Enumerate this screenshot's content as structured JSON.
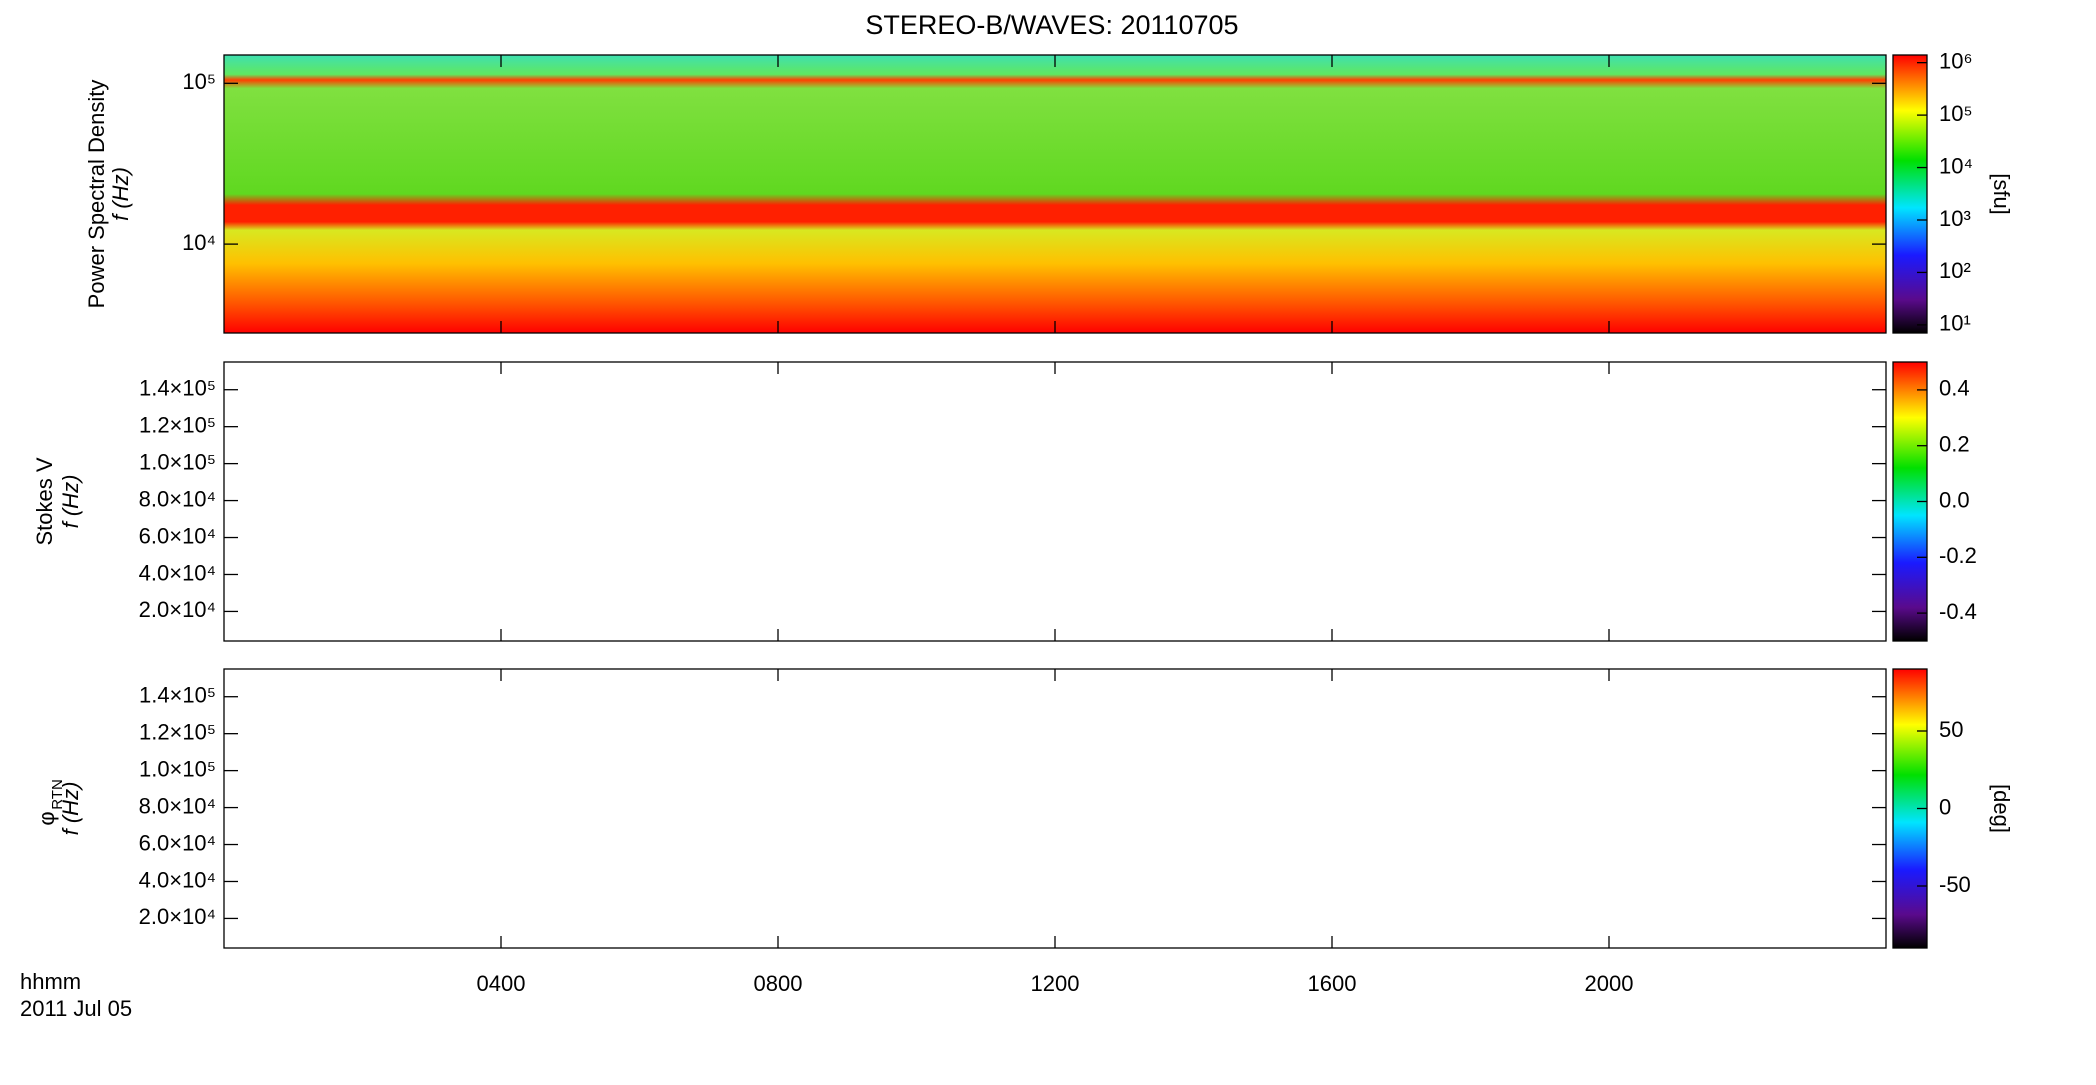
{
  "chart_data": [
    {
      "type": "spectrogram",
      "title": "STEREO-B/WAVES: 20110705",
      "ylabel": "Power Spectral Density",
      "ylabel_unit": "f (Hz)",
      "xlim": [
        0,
        24
      ],
      "xticks": [
        {
          "value": 4,
          "label": "0400"
        },
        {
          "value": 8,
          "label": "0800"
        },
        {
          "value": 12,
          "label": "1200"
        },
        {
          "value": 16,
          "label": "1600"
        },
        {
          "value": 20,
          "label": "2000"
        }
      ],
      "ylog": true,
      "ylim": [
        2800,
        150000
      ],
      "yticks": [
        {
          "value": 10000,
          "label": "10⁴"
        },
        {
          "value": 100000,
          "label": "10⁵"
        }
      ],
      "clog": true,
      "clim": [
        7,
        1400000
      ],
      "cticks": [
        {
          "value": 10,
          "label": "10¹"
        },
        {
          "value": 100,
          "label": "10²"
        },
        {
          "value": 1000,
          "label": "10³"
        },
        {
          "value": 10000,
          "label": "10⁴"
        },
        {
          "value": 100000,
          "label": "10⁵"
        },
        {
          "value": 1000000,
          "label": "10⁶"
        }
      ],
      "clabel": "[sfu]"
    },
    {
      "type": "spectrogram",
      "ylabel": "Stokes V",
      "ylabel_unit": "f (Hz)",
      "xlim": [
        0,
        24
      ],
      "xticks": [
        {
          "value": 4,
          "label": "0400"
        },
        {
          "value": 8,
          "label": "0800"
        },
        {
          "value": 12,
          "label": "1200"
        },
        {
          "value": 16,
          "label": "1600"
        },
        {
          "value": 20,
          "label": "2000"
        }
      ],
      "ylog": false,
      "ylim": [
        4000,
        155000
      ],
      "yticks": [
        {
          "value": 20000,
          "label": "2.0×10⁴"
        },
        {
          "value": 40000,
          "label": "4.0×10⁴"
        },
        {
          "value": 60000,
          "label": "6.0×10⁴"
        },
        {
          "value": 80000,
          "label": "8.0×10⁴"
        },
        {
          "value": 100000,
          "label": "1.0×10⁵"
        },
        {
          "value": 120000,
          "label": "1.2×10⁵"
        },
        {
          "value": 140000,
          "label": "1.4×10⁵"
        }
      ],
      "clog": false,
      "clim": [
        -0.5,
        0.5
      ],
      "cticks": [
        {
          "value": -0.4,
          "label": "-0.4"
        },
        {
          "value": -0.2,
          "label": "-0.2"
        },
        {
          "value": 0,
          "label": "0.0"
        },
        {
          "value": 0.2,
          "label": "0.2"
        },
        {
          "value": 0.4,
          "label": "0.4"
        }
      ]
    },
    {
      "type": "spectrogram",
      "ylabel_symbol": "φ",
      "ylabel_subscript": "RTN",
      "ylabel_unit": "f (Hz)",
      "xlabel": "hhmm",
      "date_label": "2011 Jul 05",
      "xlim": [
        0,
        24
      ],
      "xticks": [
        {
          "value": 4,
          "label": "0400"
        },
        {
          "value": 8,
          "label": "0800"
        },
        {
          "value": 12,
          "label": "1200"
        },
        {
          "value": 16,
          "label": "1600"
        },
        {
          "value": 20,
          "label": "2000"
        }
      ],
      "ylog": false,
      "ylim": [
        4000,
        155000
      ],
      "yticks": [
        {
          "value": 20000,
          "label": "2.0×10⁴"
        },
        {
          "value": 40000,
          "label": "4.0×10⁴"
        },
        {
          "value": 60000,
          "label": "6.0×10⁴"
        },
        {
          "value": 80000,
          "label": "8.0×10⁴"
        },
        {
          "value": 100000,
          "label": "1.0×10⁵"
        },
        {
          "value": 120000,
          "label": "1.2×10⁵"
        },
        {
          "value": 140000,
          "label": "1.4×10⁵"
        }
      ],
      "clog": false,
      "clim": [
        -90,
        90
      ],
      "cticks": [
        -50,
        0,
        50
      ],
      "clabel": "[deg]"
    }
  ]
}
